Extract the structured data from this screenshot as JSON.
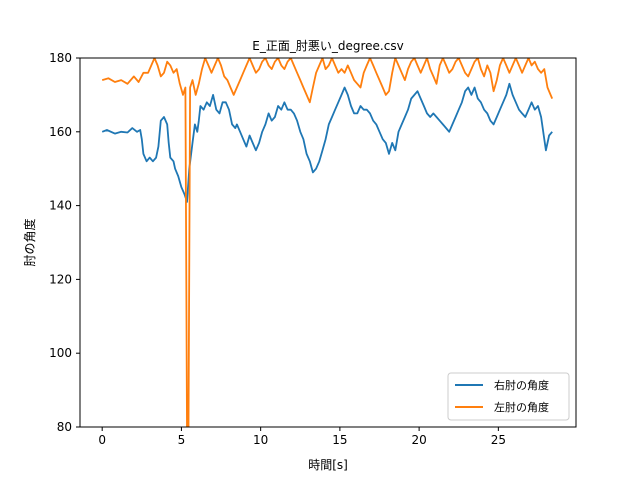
{
  "chart_data": {
    "type": "line",
    "title": "E_正面_肘悪い_degree.csv",
    "xlabel": "時間[s]",
    "ylabel": "肘の角度",
    "xlim": [
      -1.4,
      29.9
    ],
    "ylim": [
      80,
      180
    ],
    "xticks": [
      0,
      5,
      10,
      15,
      20,
      25
    ],
    "yticks": [
      80,
      100,
      120,
      140,
      160,
      180
    ],
    "grid": false,
    "legend_position": "lower-right",
    "series": [
      {
        "name": "右肘の角度",
        "color": "#1f77b4",
        "points": [
          [
            0,
            160
          ],
          [
            0.3,
            160.5
          ],
          [
            0.8,
            159.5
          ],
          [
            1.2,
            160
          ],
          [
            1.6,
            159.8
          ],
          [
            1.9,
            161
          ],
          [
            2.2,
            160
          ],
          [
            2.4,
            160.5
          ],
          [
            2.5,
            158
          ],
          [
            2.6,
            154
          ],
          [
            2.8,
            152
          ],
          [
            3.0,
            153
          ],
          [
            3.2,
            152
          ],
          [
            3.4,
            153
          ],
          [
            3.55,
            156
          ],
          [
            3.7,
            163
          ],
          [
            3.9,
            164
          ],
          [
            4.1,
            162
          ],
          [
            4.2,
            157
          ],
          [
            4.3,
            153
          ],
          [
            4.5,
            152
          ],
          [
            4.6,
            150
          ],
          [
            4.8,
            148
          ],
          [
            5.0,
            145
          ],
          [
            5.2,
            143
          ],
          [
            5.35,
            141
          ],
          [
            5.5,
            150
          ],
          [
            5.7,
            157
          ],
          [
            5.85,
            162
          ],
          [
            6.0,
            160
          ],
          [
            6.1,
            163
          ],
          [
            6.2,
            167
          ],
          [
            6.4,
            166
          ],
          [
            6.6,
            168
          ],
          [
            6.8,
            167
          ],
          [
            7.0,
            170
          ],
          [
            7.2,
            166
          ],
          [
            7.4,
            165
          ],
          [
            7.6,
            168
          ],
          [
            7.8,
            168
          ],
          [
            8.0,
            166
          ],
          [
            8.2,
            162
          ],
          [
            8.4,
            161
          ],
          [
            8.5,
            162
          ],
          [
            8.7,
            160
          ],
          [
            8.9,
            158
          ],
          [
            9.1,
            156
          ],
          [
            9.3,
            159
          ],
          [
            9.5,
            157
          ],
          [
            9.7,
            155
          ],
          [
            9.9,
            157
          ],
          [
            10.1,
            160
          ],
          [
            10.3,
            162
          ],
          [
            10.5,
            165
          ],
          [
            10.7,
            163
          ],
          [
            10.9,
            164
          ],
          [
            11.1,
            167
          ],
          [
            11.3,
            166
          ],
          [
            11.5,
            168
          ],
          [
            11.7,
            166
          ],
          [
            11.9,
            166
          ],
          [
            12.1,
            165
          ],
          [
            12.3,
            163
          ],
          [
            12.5,
            160
          ],
          [
            12.7,
            158
          ],
          [
            12.9,
            154
          ],
          [
            13.1,
            152
          ],
          [
            13.3,
            149
          ],
          [
            13.5,
            150
          ],
          [
            13.7,
            152
          ],
          [
            13.9,
            155
          ],
          [
            14.1,
            158
          ],
          [
            14.3,
            162
          ],
          [
            14.5,
            164
          ],
          [
            14.7,
            166
          ],
          [
            14.9,
            168
          ],
          [
            15.1,
            170
          ],
          [
            15.3,
            172
          ],
          [
            15.5,
            170
          ],
          [
            15.7,
            167
          ],
          [
            15.9,
            165
          ],
          [
            16.1,
            165
          ],
          [
            16.3,
            167
          ],
          [
            16.5,
            166
          ],
          [
            16.7,
            166
          ],
          [
            16.9,
            165
          ],
          [
            17.1,
            163
          ],
          [
            17.3,
            162
          ],
          [
            17.5,
            160
          ],
          [
            17.7,
            158
          ],
          [
            17.9,
            157
          ],
          [
            18.1,
            154
          ],
          [
            18.3,
            157
          ],
          [
            18.5,
            155
          ],
          [
            18.7,
            160
          ],
          [
            18.9,
            162
          ],
          [
            19.1,
            164
          ],
          [
            19.3,
            166
          ],
          [
            19.5,
            169
          ],
          [
            19.7,
            170
          ],
          [
            19.9,
            171
          ],
          [
            20.1,
            169
          ],
          [
            20.3,
            167
          ],
          [
            20.5,
            165
          ],
          [
            20.7,
            164
          ],
          [
            20.9,
            165
          ],
          [
            21.1,
            164
          ],
          [
            21.3,
            163
          ],
          [
            21.5,
            162
          ],
          [
            21.7,
            161
          ],
          [
            21.9,
            160
          ],
          [
            22.1,
            162
          ],
          [
            22.3,
            164
          ],
          [
            22.5,
            166
          ],
          [
            22.7,
            168
          ],
          [
            22.9,
            171
          ],
          [
            23.1,
            172
          ],
          [
            23.3,
            170
          ],
          [
            23.5,
            172
          ],
          [
            23.7,
            169
          ],
          [
            23.9,
            168
          ],
          [
            24.1,
            166
          ],
          [
            24.3,
            165
          ],
          [
            24.5,
            163
          ],
          [
            24.7,
            162
          ],
          [
            24.9,
            164
          ],
          [
            25.1,
            166
          ],
          [
            25.3,
            168
          ],
          [
            25.5,
            170
          ],
          [
            25.7,
            173
          ],
          [
            25.9,
            170
          ],
          [
            26.1,
            168
          ],
          [
            26.3,
            166
          ],
          [
            26.5,
            165
          ],
          [
            26.7,
            164
          ],
          [
            26.9,
            166
          ],
          [
            27.1,
            168
          ],
          [
            27.3,
            166
          ],
          [
            27.5,
            167
          ],
          [
            27.7,
            164
          ],
          [
            27.9,
            158
          ],
          [
            28.0,
            155
          ],
          [
            28.2,
            159
          ],
          [
            28.4,
            160
          ]
        ]
      },
      {
        "name": "左肘の角度",
        "color": "#ff7f0e",
        "points": [
          [
            0,
            174
          ],
          [
            0.4,
            174.5
          ],
          [
            0.8,
            173.5
          ],
          [
            1.2,
            174
          ],
          [
            1.6,
            173
          ],
          [
            2.0,
            175
          ],
          [
            2.3,
            173.5
          ],
          [
            2.6,
            176
          ],
          [
            2.9,
            176
          ],
          [
            3.1,
            178
          ],
          [
            3.3,
            180
          ],
          [
            3.5,
            178
          ],
          [
            3.7,
            175
          ],
          [
            3.9,
            176
          ],
          [
            4.1,
            179
          ],
          [
            4.3,
            178
          ],
          [
            4.5,
            176
          ],
          [
            4.7,
            177
          ],
          [
            4.9,
            173
          ],
          [
            5.1,
            170
          ],
          [
            5.25,
            172
          ],
          [
            5.35,
            80
          ],
          [
            5.45,
            80
          ],
          [
            5.55,
            172
          ],
          [
            5.7,
            174
          ],
          [
            5.9,
            170
          ],
          [
            6.1,
            173
          ],
          [
            6.3,
            177
          ],
          [
            6.5,
            180
          ],
          [
            6.7,
            178
          ],
          [
            6.9,
            176
          ],
          [
            7.1,
            178
          ],
          [
            7.3,
            180
          ],
          [
            7.5,
            178
          ],
          [
            7.7,
            175
          ],
          [
            7.9,
            174
          ],
          [
            8.1,
            172
          ],
          [
            8.3,
            170
          ],
          [
            8.5,
            172
          ],
          [
            8.7,
            174
          ],
          [
            8.9,
            176
          ],
          [
            9.1,
            178
          ],
          [
            9.3,
            180
          ],
          [
            9.5,
            178
          ],
          [
            9.7,
            176
          ],
          [
            9.9,
            177
          ],
          [
            10.1,
            179
          ],
          [
            10.3,
            180
          ],
          [
            10.5,
            178
          ],
          [
            10.7,
            177
          ],
          [
            10.9,
            179
          ],
          [
            11.1,
            180
          ],
          [
            11.3,
            178
          ],
          [
            11.5,
            177
          ],
          [
            11.7,
            179
          ],
          [
            11.9,
            180
          ],
          [
            12.1,
            178
          ],
          [
            12.3,
            176
          ],
          [
            12.5,
            174
          ],
          [
            12.7,
            172
          ],
          [
            12.9,
            170
          ],
          [
            13.1,
            168
          ],
          [
            13.3,
            172
          ],
          [
            13.5,
            176
          ],
          [
            13.7,
            178
          ],
          [
            13.9,
            180
          ],
          [
            14.1,
            177
          ],
          [
            14.3,
            178
          ],
          [
            14.5,
            180
          ],
          [
            14.7,
            178
          ],
          [
            14.9,
            176
          ],
          [
            15.1,
            177
          ],
          [
            15.3,
            176
          ],
          [
            15.5,
            178
          ],
          [
            15.7,
            176
          ],
          [
            15.9,
            174
          ],
          [
            16.1,
            173
          ],
          [
            16.3,
            172
          ],
          [
            16.5,
            176
          ],
          [
            16.7,
            178
          ],
          [
            16.9,
            180
          ],
          [
            17.1,
            178
          ],
          [
            17.3,
            176
          ],
          [
            17.5,
            174
          ],
          [
            17.7,
            172
          ],
          [
            17.9,
            170
          ],
          [
            18.1,
            171
          ],
          [
            18.3,
            176
          ],
          [
            18.5,
            180
          ],
          [
            18.7,
            178
          ],
          [
            18.9,
            176
          ],
          [
            19.1,
            174
          ],
          [
            19.3,
            177
          ],
          [
            19.5,
            179
          ],
          [
            19.7,
            180
          ],
          [
            19.9,
            178
          ],
          [
            20.1,
            176
          ],
          [
            20.3,
            178
          ],
          [
            20.5,
            180
          ],
          [
            20.7,
            177
          ],
          [
            20.9,
            175
          ],
          [
            21.1,
            173
          ],
          [
            21.3,
            178
          ],
          [
            21.5,
            180
          ],
          [
            21.7,
            178
          ],
          [
            21.9,
            176
          ],
          [
            22.1,
            177
          ],
          [
            22.3,
            179
          ],
          [
            22.5,
            180
          ],
          [
            22.7,
            178
          ],
          [
            22.9,
            176
          ],
          [
            23.1,
            175
          ],
          [
            23.3,
            177
          ],
          [
            23.5,
            179
          ],
          [
            23.7,
            180
          ],
          [
            23.9,
            177
          ],
          [
            24.1,
            175
          ],
          [
            24.3,
            178
          ],
          [
            24.5,
            176
          ],
          [
            24.7,
            171
          ],
          [
            24.9,
            174
          ],
          [
            25.1,
            178
          ],
          [
            25.3,
            180
          ],
          [
            25.5,
            178
          ],
          [
            25.7,
            176
          ],
          [
            25.9,
            178
          ],
          [
            26.1,
            180
          ],
          [
            26.3,
            178
          ],
          [
            26.5,
            176
          ],
          [
            26.7,
            178
          ],
          [
            26.9,
            180
          ],
          [
            27.1,
            178
          ],
          [
            27.3,
            179
          ],
          [
            27.5,
            177
          ],
          [
            27.7,
            176
          ],
          [
            27.9,
            177
          ],
          [
            28.1,
            172
          ],
          [
            28.3,
            170
          ],
          [
            28.4,
            169
          ]
        ]
      }
    ]
  }
}
